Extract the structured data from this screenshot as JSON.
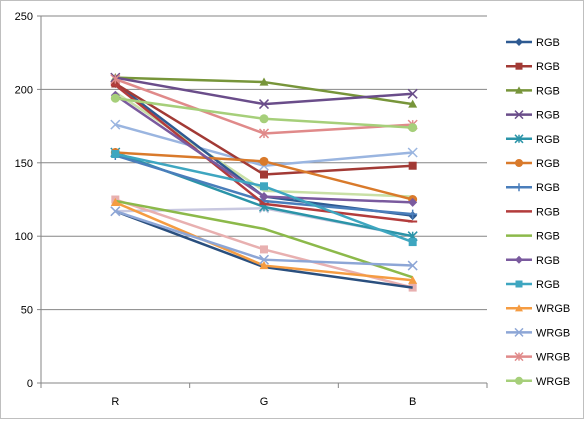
{
  "chart_data": {
    "type": "line",
    "title": "",
    "xlabel": "",
    "ylabel": "",
    "categories": [
      "R",
      "G",
      "B"
    ],
    "ylim": [
      0,
      250
    ],
    "yticks": [
      0,
      50,
      100,
      150,
      200,
      250
    ],
    "grid": true,
    "legend_position": "right",
    "series": [
      {
        "name": "RGB",
        "color": "#2e5a92",
        "marker": "diamond",
        "values": [
          204,
          127,
          114
        ]
      },
      {
        "name": "RGB",
        "color": "#a23a35",
        "marker": "square",
        "values": [
          204,
          142,
          148
        ]
      },
      {
        "name": "RGB",
        "color": "#77953a",
        "marker": "triangle",
        "values": [
          208,
          205,
          190
        ]
      },
      {
        "name": "RGB",
        "color": "#6a4d8a",
        "marker": "x",
        "values": [
          208,
          190,
          197
        ]
      },
      {
        "name": "RGB",
        "color": "#2b94a8",
        "marker": "star",
        "values": [
          157,
          120,
          100
        ]
      },
      {
        "name": "RGB",
        "color": "#d97a2b",
        "marker": "circle",
        "values": [
          157,
          151,
          125
        ]
      },
      {
        "name": "RGB",
        "color": "#4a7ebb",
        "marker": "plus",
        "values": [
          155,
          124,
          115
        ]
      },
      {
        "name": "RGB",
        "color": "#b33c3c",
        "marker": "dash",
        "values": [
          203,
          122,
          110
        ]
      },
      {
        "name": "RGB",
        "color": "#8cb94a",
        "marker": "none",
        "values": [
          124,
          105,
          72
        ]
      },
      {
        "name": "RGB",
        "color": "#7a5a9e",
        "marker": "diamond",
        "values": [
          196,
          127,
          123
        ]
      },
      {
        "name": "RGB",
        "color": "#3ea6c0",
        "marker": "square",
        "values": [
          156,
          134,
          96
        ]
      },
      {
        "name": "WRGB",
        "color": "#f59c42",
        "marker": "triangle",
        "values": [
          123,
          80,
          70
        ]
      },
      {
        "name": "WRGB",
        "color": "#8da6d6",
        "marker": "x",
        "values": [
          117,
          84,
          80
        ]
      },
      {
        "name": "WRGB",
        "color": "#e08a8a",
        "marker": "star",
        "values": [
          207,
          170,
          176
        ]
      },
      {
        "name": "WRGB",
        "color": "#a6cf7a",
        "marker": "circle",
        "values": [
          194,
          180,
          174
        ]
      }
    ],
    "extra_series": [
      {
        "color": "#9ab5e0",
        "marker": "x",
        "values": [
          176,
          148,
          157
        ]
      },
      {
        "color": "#c9e0a6",
        "marker": "none",
        "values": [
          198,
          131,
          127
        ]
      },
      {
        "color": "#c8c8e0",
        "marker": "x",
        "values": [
          117,
          119,
          100
        ]
      },
      {
        "color": "#e8b0b0",
        "marker": "square",
        "values": [
          125,
          91,
          65
        ]
      },
      {
        "color": "#2a4f7e",
        "marker": "none",
        "values": [
          117,
          79,
          65
        ]
      }
    ]
  }
}
